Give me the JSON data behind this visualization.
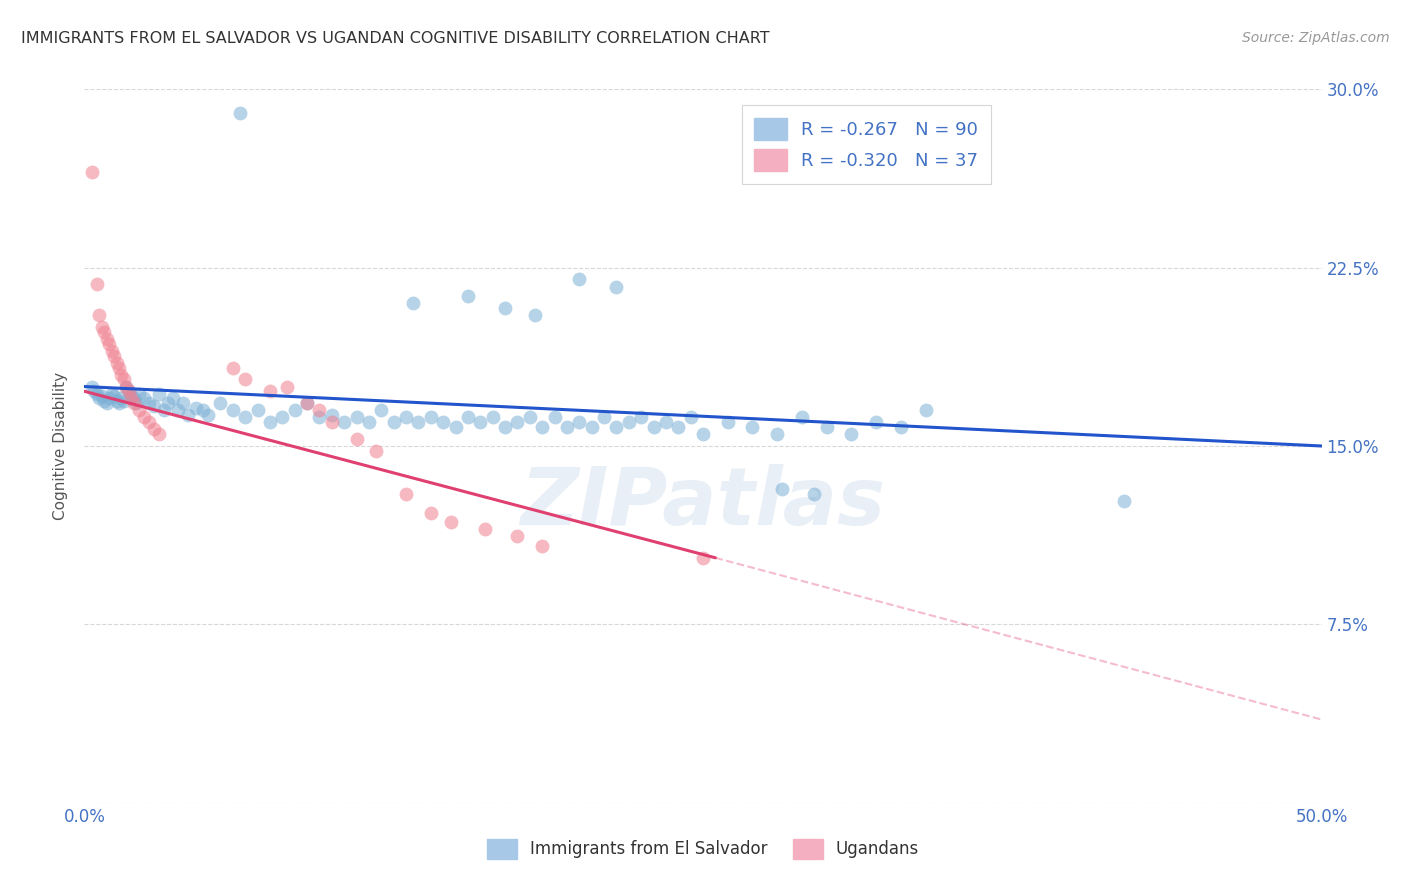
{
  "title": "IMMIGRANTS FROM EL SALVADOR VS UGANDAN COGNITIVE DISABILITY CORRELATION CHART",
  "source": "Source: ZipAtlas.com",
  "ylabel": "Cognitive Disability",
  "legend_label_blue": "Immigrants from El Salvador",
  "legend_label_pink": "Ugandans",
  "blue_color": "#7bafd4",
  "pink_color": "#f08090",
  "blue_line_color": "#2255cc",
  "pink_line_color": "#e04070",
  "watermark": "ZIPatlas",
  "background_color": "#ffffff",
  "grid_color": "#d8d8d8",
  "tick_color": "#4472c4",
  "title_color": "#333333",
  "xlim": [
    0.0,
    0.5
  ],
  "ylim": [
    0.0,
    0.3
  ],
  "blue_scatter": [
    [
      0.003,
      0.175
    ],
    [
      0.004,
      0.173
    ],
    [
      0.005,
      0.172
    ],
    [
      0.006,
      0.17
    ],
    [
      0.007,
      0.171
    ],
    [
      0.008,
      0.169
    ],
    [
      0.009,
      0.168
    ],
    [
      0.01,
      0.17
    ],
    [
      0.011,
      0.172
    ],
    [
      0.012,
      0.171
    ],
    [
      0.013,
      0.169
    ],
    [
      0.014,
      0.168
    ],
    [
      0.015,
      0.17
    ],
    [
      0.016,
      0.169
    ],
    [
      0.017,
      0.175
    ],
    [
      0.018,
      0.173
    ],
    [
      0.019,
      0.171
    ],
    [
      0.02,
      0.17
    ],
    [
      0.021,
      0.168
    ],
    [
      0.022,
      0.172
    ],
    [
      0.024,
      0.17
    ],
    [
      0.026,
      0.168
    ],
    [
      0.028,
      0.167
    ],
    [
      0.03,
      0.172
    ],
    [
      0.032,
      0.165
    ],
    [
      0.034,
      0.168
    ],
    [
      0.036,
      0.17
    ],
    [
      0.038,
      0.165
    ],
    [
      0.04,
      0.168
    ],
    [
      0.042,
      0.163
    ],
    [
      0.045,
      0.166
    ],
    [
      0.048,
      0.165
    ],
    [
      0.05,
      0.163
    ],
    [
      0.055,
      0.168
    ],
    [
      0.06,
      0.165
    ],
    [
      0.065,
      0.162
    ],
    [
      0.07,
      0.165
    ],
    [
      0.075,
      0.16
    ],
    [
      0.08,
      0.162
    ],
    [
      0.085,
      0.165
    ],
    [
      0.09,
      0.168
    ],
    [
      0.095,
      0.162
    ],
    [
      0.1,
      0.163
    ],
    [
      0.105,
      0.16
    ],
    [
      0.11,
      0.162
    ],
    [
      0.115,
      0.16
    ],
    [
      0.12,
      0.165
    ],
    [
      0.125,
      0.16
    ],
    [
      0.13,
      0.162
    ],
    [
      0.135,
      0.16
    ],
    [
      0.14,
      0.162
    ],
    [
      0.145,
      0.16
    ],
    [
      0.15,
      0.158
    ],
    [
      0.155,
      0.162
    ],
    [
      0.16,
      0.16
    ],
    [
      0.165,
      0.162
    ],
    [
      0.17,
      0.158
    ],
    [
      0.175,
      0.16
    ],
    [
      0.18,
      0.162
    ],
    [
      0.185,
      0.158
    ],
    [
      0.19,
      0.162
    ],
    [
      0.195,
      0.158
    ],
    [
      0.2,
      0.16
    ],
    [
      0.205,
      0.158
    ],
    [
      0.21,
      0.162
    ],
    [
      0.215,
      0.158
    ],
    [
      0.22,
      0.16
    ],
    [
      0.225,
      0.162
    ],
    [
      0.23,
      0.158
    ],
    [
      0.235,
      0.16
    ],
    [
      0.24,
      0.158
    ],
    [
      0.245,
      0.162
    ],
    [
      0.25,
      0.155
    ],
    [
      0.26,
      0.16
    ],
    [
      0.27,
      0.158
    ],
    [
      0.28,
      0.155
    ],
    [
      0.29,
      0.162
    ],
    [
      0.3,
      0.158
    ],
    [
      0.31,
      0.155
    ],
    [
      0.32,
      0.16
    ],
    [
      0.33,
      0.158
    ],
    [
      0.34,
      0.165
    ],
    [
      0.063,
      0.29
    ],
    [
      0.2,
      0.22
    ],
    [
      0.215,
      0.217
    ],
    [
      0.155,
      0.213
    ],
    [
      0.17,
      0.208
    ],
    [
      0.182,
      0.205
    ],
    [
      0.133,
      0.21
    ],
    [
      0.42,
      0.127
    ],
    [
      0.282,
      0.132
    ],
    [
      0.295,
      0.13
    ]
  ],
  "pink_scatter": [
    [
      0.003,
      0.265
    ],
    [
      0.005,
      0.218
    ],
    [
      0.006,
      0.205
    ],
    [
      0.007,
      0.2
    ],
    [
      0.008,
      0.198
    ],
    [
      0.009,
      0.195
    ],
    [
      0.01,
      0.193
    ],
    [
      0.011,
      0.19
    ],
    [
      0.012,
      0.188
    ],
    [
      0.013,
      0.185
    ],
    [
      0.014,
      0.183
    ],
    [
      0.015,
      0.18
    ],
    [
      0.016,
      0.178
    ],
    [
      0.017,
      0.175
    ],
    [
      0.018,
      0.173
    ],
    [
      0.019,
      0.17
    ],
    [
      0.02,
      0.168
    ],
    [
      0.022,
      0.165
    ],
    [
      0.024,
      0.162
    ],
    [
      0.026,
      0.16
    ],
    [
      0.028,
      0.157
    ],
    [
      0.03,
      0.155
    ],
    [
      0.06,
      0.183
    ],
    [
      0.065,
      0.178
    ],
    [
      0.075,
      0.173
    ],
    [
      0.082,
      0.175
    ],
    [
      0.09,
      0.168
    ],
    [
      0.095,
      0.165
    ],
    [
      0.1,
      0.16
    ],
    [
      0.11,
      0.153
    ],
    [
      0.118,
      0.148
    ],
    [
      0.13,
      0.13
    ],
    [
      0.14,
      0.122
    ],
    [
      0.148,
      0.118
    ],
    [
      0.162,
      0.115
    ],
    [
      0.175,
      0.112
    ],
    [
      0.185,
      0.108
    ],
    [
      0.25,
      0.103
    ]
  ],
  "blue_line_start_x": 0.0,
  "blue_line_start_y": 0.175,
  "blue_line_end_x": 0.5,
  "blue_line_end_y": 0.15,
  "pink_line_solid_start_x": 0.0,
  "pink_line_solid_start_y": 0.173,
  "pink_line_solid_end_x": 0.255,
  "pink_line_solid_end_y": 0.103,
  "pink_line_dash_start_x": 0.255,
  "pink_line_dash_start_y": 0.103,
  "pink_line_dash_end_x": 0.5,
  "pink_line_dash_end_y": 0.035
}
